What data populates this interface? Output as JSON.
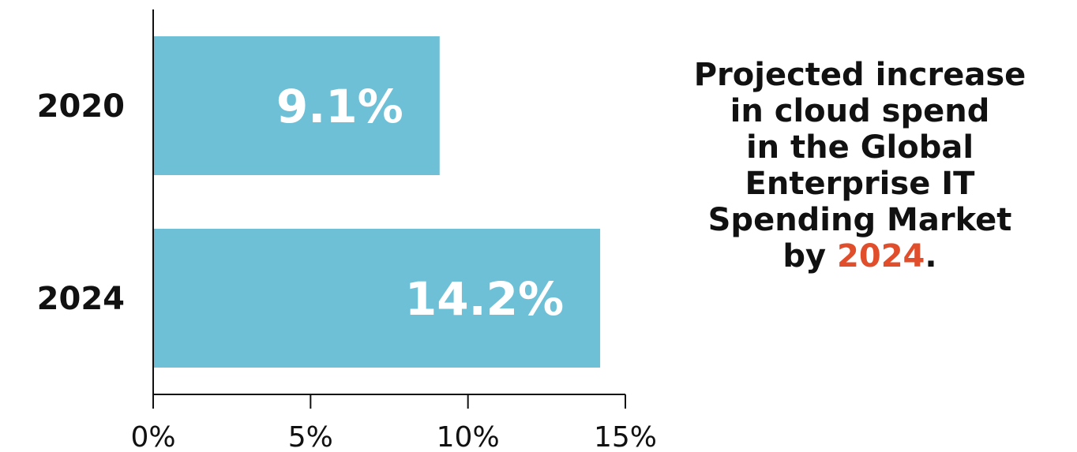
{
  "chart_data": {
    "type": "bar",
    "orientation": "horizontal",
    "categories": [
      "2020",
      "2024"
    ],
    "values": [
      9.1,
      14.2
    ],
    "value_labels": [
      "9.1%",
      "14.2%"
    ],
    "xlim": [
      0,
      15
    ],
    "xticks": [
      0,
      5,
      10,
      15
    ],
    "xtick_labels": [
      "0%",
      "5%",
      "10%",
      "15%"
    ],
    "bar_color": "#6dc0d5",
    "grid": false,
    "legend": "none"
  },
  "headline": {
    "lines": [
      "Projected increase",
      "in cloud spend",
      "in the Global",
      "Enterprise IT",
      "Spending Market"
    ],
    "last_prefix": "by ",
    "last_accent": "2024",
    "last_suffix": ".",
    "accent_color": "#e04e2b"
  }
}
